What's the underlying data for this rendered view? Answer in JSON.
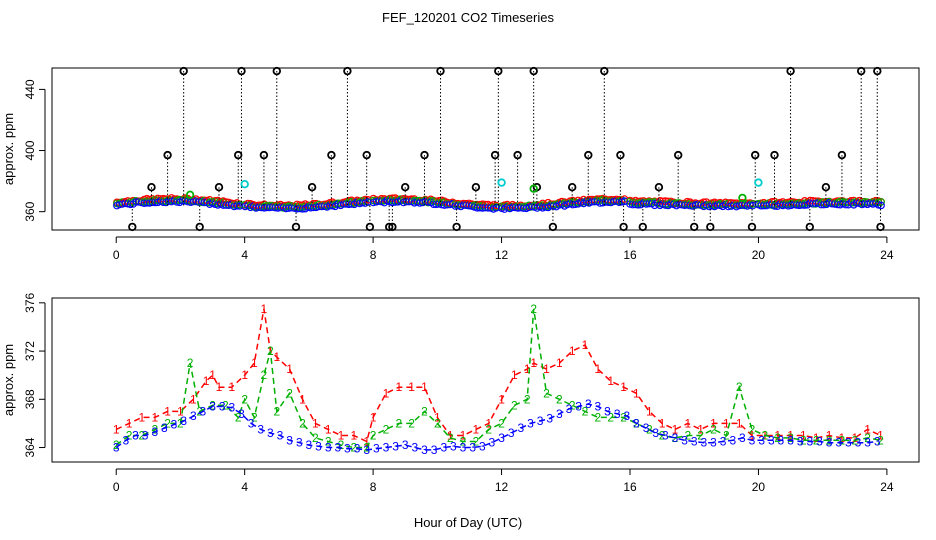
{
  "figure": {
    "title": "FEF_120201  CO2 Timeseries",
    "xlabel": "Hour of Day (UTC)"
  },
  "chart_data": [
    {
      "id": "top",
      "type": "scatter",
      "ylabel": "approx. ppm",
      "xlim": [
        -2,
        25
      ],
      "ylim": [
        348,
        454
      ],
      "xticks": [
        0,
        4,
        8,
        12,
        16,
        20,
        24
      ],
      "xtick_labels": [
        "0",
        "4",
        "8",
        "12",
        "16",
        "20",
        "24"
      ],
      "yticks": [
        360,
        400,
        440
      ],
      "ytick_labels": [
        "360",
        "400",
        "440"
      ],
      "series": [
        {
          "name": "black",
          "color": "#000000",
          "x": [
            0.5,
            1.1,
            1.6,
            2.1,
            2.6,
            3.2,
            3.8,
            3.9,
            4.6,
            5.0,
            5.6,
            6.1,
            6.7,
            7.2,
            7.8,
            7.9,
            8.5,
            8.6,
            9.0,
            9.6,
            10.1,
            10.6,
            11.2,
            11.8,
            11.9,
            12.5,
            13.0,
            13.1,
            13.6,
            14.2,
            14.7,
            15.2,
            15.7,
            15.8,
            16.4,
            16.9,
            17.5,
            18.0,
            18.5,
            19.8,
            19.9,
            20.5,
            21.0,
            21.6,
            22.1,
            22.6,
            23.2,
            23.7,
            23.8
          ],
          "y": [
            350,
            376,
            397,
            452,
            350,
            376,
            397,
            452,
            397,
            452,
            350,
            376,
            397,
            452,
            397,
            350,
            350,
            350,
            376,
            397,
            452,
            350,
            376,
            397,
            452,
            397,
            452,
            376,
            350,
            376,
            397,
            452,
            397,
            350,
            350,
            376,
            397,
            350,
            350,
            350,
            397,
            397,
            452,
            350,
            376,
            397,
            452,
            452,
            350
          ]
        },
        {
          "name": "green",
          "color": "#00b000",
          "x": [
            2.3,
            13.0,
            19.5
          ],
          "y": [
            371,
            375,
            369
          ]
        },
        {
          "name": "cyan",
          "color": "#00cccc",
          "x": [
            4.0,
            12.0,
            20.0
          ],
          "y": [
            378,
            379,
            379
          ]
        }
      ]
    },
    {
      "id": "bottom",
      "type": "line",
      "ylabel": "approx. ppm",
      "xlim": [
        -2,
        25
      ],
      "ylim": [
        362.8,
        376.4
      ],
      "xticks": [
        0,
        4,
        8,
        12,
        16,
        20,
        24
      ],
      "xtick_labels": [
        "0",
        "4",
        "8",
        "12",
        "16",
        "20",
        "24"
      ],
      "yticks": [
        364,
        368,
        372,
        376
      ],
      "ytick_labels": [
        "364",
        "368",
        "372",
        "376"
      ],
      "series": [
        {
          "name": "1",
          "label": "1",
          "color": "#ff0000",
          "x": [
            0,
            0.4,
            0.8,
            1.2,
            1.6,
            2.0,
            2.4,
            2.8,
            3.0,
            3.2,
            3.6,
            4.0,
            4.3,
            4.6,
            4.8,
            5.0,
            5.4,
            5.8,
            6.2,
            6.6,
            7.0,
            7.4,
            7.8,
            8.0,
            8.4,
            8.8,
            9.2,
            9.6,
            10.0,
            10.4,
            10.8,
            11.2,
            11.6,
            12.0,
            12.4,
            12.8,
            13.0,
            13.4,
            13.8,
            14.2,
            14.6,
            15.0,
            15.4,
            15.8,
            16.2,
            16.6,
            17.0,
            17.4,
            17.8,
            18.2,
            18.6,
            19.0,
            19.4,
            19.8,
            20.2,
            20.6,
            21.0,
            21.4,
            21.8,
            22.2,
            22.6,
            23.0,
            23.4,
            23.8
          ],
          "y": [
            365.5,
            366.0,
            366.5,
            366.5,
            367.0,
            367.0,
            368.0,
            369.5,
            370.0,
            369.0,
            369.0,
            370.0,
            371.0,
            375.5,
            372.0,
            371.5,
            370.5,
            368.0,
            366.0,
            365.5,
            365.0,
            365.0,
            364.5,
            366.5,
            368.5,
            369.0,
            369.0,
            369.0,
            366.5,
            365.0,
            365.0,
            365.5,
            366.0,
            368.0,
            370.0,
            370.5,
            371.0,
            370.5,
            371.0,
            372.0,
            372.5,
            370.5,
            369.5,
            369.0,
            368.5,
            367.0,
            366.0,
            365.5,
            366.0,
            365.5,
            366.0,
            366.0,
            366.0,
            365.0,
            365.0,
            365.0,
            365.0,
            365.0,
            364.8,
            365.0,
            364.8,
            364.8,
            365.5,
            365.0
          ]
        },
        {
          "name": "2",
          "label": "2",
          "color": "#00b000",
          "x": [
            0,
            0.4,
            0.8,
            1.2,
            1.6,
            2.0,
            2.3,
            2.6,
            3.0,
            3.4,
            3.8,
            4.0,
            4.3,
            4.6,
            4.8,
            5.0,
            5.4,
            5.8,
            6.2,
            6.6,
            7.0,
            7.4,
            7.8,
            8.0,
            8.4,
            8.8,
            9.2,
            9.6,
            10.0,
            10.4,
            10.8,
            11.2,
            11.6,
            12.0,
            12.4,
            12.8,
            13.0,
            13.4,
            13.8,
            14.2,
            14.6,
            15.0,
            15.4,
            15.8,
            16.2,
            16.6,
            17.0,
            17.4,
            17.8,
            18.2,
            18.6,
            19.0,
            19.4,
            19.8,
            20.2,
            20.6,
            21.0,
            21.4,
            21.8,
            22.2,
            22.6,
            23.0,
            23.4,
            23.8
          ],
          "y": [
            364.2,
            365.0,
            365.0,
            365.5,
            366.0,
            366.0,
            371.0,
            367.0,
            367.5,
            367.5,
            366.5,
            368.0,
            366.5,
            370.0,
            372.0,
            367.0,
            368.5,
            366.0,
            364.8,
            364.5,
            364.2,
            364.0,
            364.0,
            365.0,
            365.5,
            366.0,
            366.0,
            367.0,
            366.0,
            364.8,
            364.5,
            364.5,
            365.5,
            366.0,
            367.5,
            368.0,
            375.5,
            368.5,
            368.0,
            367.5,
            367.0,
            366.5,
            366.5,
            366.5,
            366.0,
            365.5,
            365.0,
            364.8,
            365.0,
            365.0,
            365.5,
            365.0,
            369.0,
            365.5,
            365.0,
            364.8,
            364.8,
            364.6,
            364.6,
            364.6,
            364.6,
            364.6,
            364.8,
            364.6
          ]
        },
        {
          "name": "3",
          "label": "3",
          "color": "#0000ff",
          "x": [
            0.0,
            0.3,
            0.6,
            0.9,
            1.2,
            1.5,
            1.8,
            2.1,
            2.4,
            2.7,
            3.0,
            3.3,
            3.6,
            3.9,
            4.2,
            4.5,
            4.8,
            5.1,
            5.4,
            5.7,
            6.0,
            6.3,
            6.6,
            6.9,
            7.2,
            7.5,
            7.8,
            8.1,
            8.4,
            8.7,
            9.0,
            9.3,
            9.6,
            9.9,
            10.2,
            10.5,
            10.8,
            11.1,
            11.4,
            11.7,
            12.0,
            12.3,
            12.6,
            12.9,
            13.2,
            13.5,
            13.8,
            14.1,
            14.4,
            14.7,
            15.0,
            15.3,
            15.6,
            15.9,
            16.2,
            16.5,
            16.8,
            17.1,
            17.4,
            17.7,
            18.0,
            18.3,
            18.6,
            18.9,
            19.2,
            19.5,
            19.8,
            20.1,
            20.4,
            20.7,
            21.0,
            21.3,
            21.6,
            21.9,
            22.2,
            22.5,
            22.8,
            23.1,
            23.4,
            23.7
          ],
          "y": [
            364.0,
            364.6,
            365.0,
            365.0,
            365.3,
            365.6,
            365.9,
            366.2,
            366.6,
            367.0,
            367.4,
            367.4,
            367.3,
            366.8,
            366.0,
            365.5,
            365.2,
            365.0,
            364.6,
            364.4,
            364.2,
            364.1,
            364.0,
            364.0,
            363.9,
            363.9,
            363.8,
            363.9,
            364.0,
            364.1,
            364.2,
            364.0,
            363.8,
            363.8,
            364.0,
            364.1,
            364.0,
            364.0,
            364.1,
            364.4,
            364.8,
            365.2,
            365.6,
            366.0,
            366.2,
            366.4,
            366.8,
            367.2,
            367.4,
            367.6,
            367.4,
            367.0,
            366.8,
            366.6,
            366.0,
            365.6,
            365.2,
            365.0,
            364.8,
            364.6,
            364.5,
            364.4,
            364.4,
            364.5,
            364.6,
            364.8,
            364.6,
            364.6,
            364.6,
            364.6,
            364.6,
            364.5,
            364.5,
            364.5,
            364.4,
            364.4,
            364.4,
            364.4,
            364.4,
            364.5
          ]
        }
      ]
    }
  ]
}
